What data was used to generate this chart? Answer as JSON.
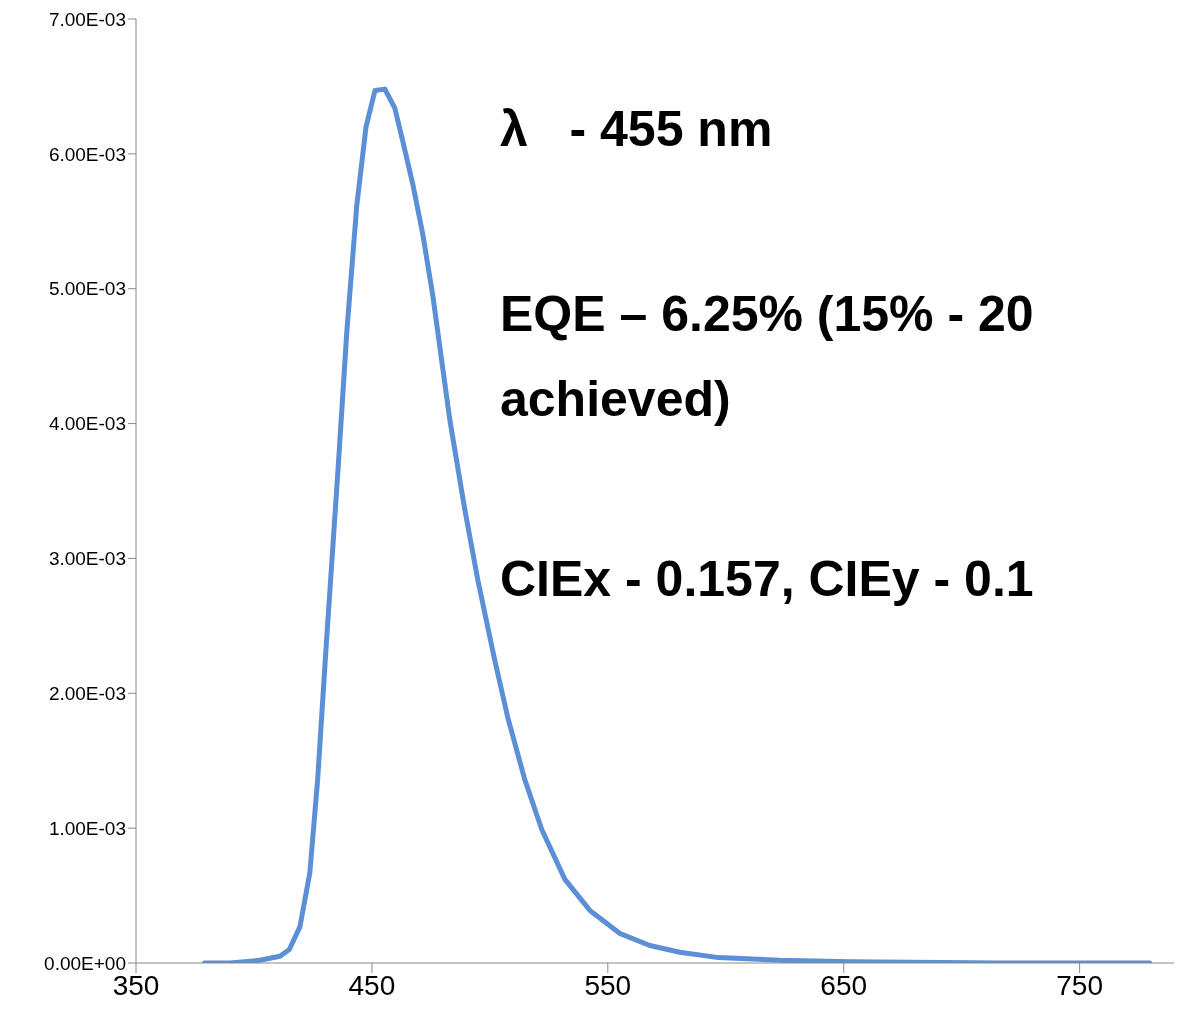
{
  "chart_data": {
    "type": "line",
    "xlim": [
      350,
      790
    ],
    "xticks": [
      350,
      450,
      550,
      650,
      750
    ],
    "ylim": [
      0,
      0.007
    ],
    "yticks": [
      {
        "value": 0,
        "label": "0.00E+00"
      },
      {
        "value": 0.001,
        "label": "1.00E-03"
      },
      {
        "value": 0.002,
        "label": "2.00E-03"
      },
      {
        "value": 0.003,
        "label": "3.00E-03"
      },
      {
        "value": 0.004,
        "label": "4.00E-03"
      },
      {
        "value": 0.005,
        "label": "5.00E-03"
      },
      {
        "value": 0.006,
        "label": "6.00E-03"
      },
      {
        "value": 0.007,
        "label": "7.00E-03"
      }
    ],
    "grid": false,
    "legend": false,
    "marker": "none",
    "line_style": "solid",
    "annotations": [
      "λ   - 455 nm",
      "EQE – 6.25% (15% - 20",
      "achieved)",
      "CIEx - 0.157, CIEy - 0.1"
    ],
    "series": [
      {
        "color": "#5b8fd6",
        "x": [
          379,
          390,
          402.5,
          411,
          415,
          419.5,
          423.7,
          427,
          430.5,
          435.6,
          439.4,
          443.6,
          447.5,
          451.3,
          455.5,
          459.7,
          463,
          467.4,
          471.6,
          475.8,
          483,
          489.4,
          494.9,
          502,
          507.6,
          514.8,
          522,
          531.8,
          542.4,
          555,
          567.8,
          580.5,
          597,
          622.9,
          652.5,
          716,
          779.7
        ],
        "values": [
          0,
          0,
          2e-05,
          5e-05,
          0.0001,
          0.00027,
          0.00067,
          0.00136,
          0.00232,
          0.00365,
          0.00469,
          0.00562,
          0.0062,
          0.00647,
          0.00648,
          0.00634,
          0.0061,
          0.00577,
          0.0054,
          0.00495,
          0.00403,
          0.00336,
          0.00284,
          0.00225,
          0.00182,
          0.00136,
          0.00099,
          0.00062,
          0.00039,
          0.00022,
          0.00013,
          8e-05,
          4e-05,
          2e-05,
          1e-05,
          0,
          0
        ]
      }
    ]
  }
}
